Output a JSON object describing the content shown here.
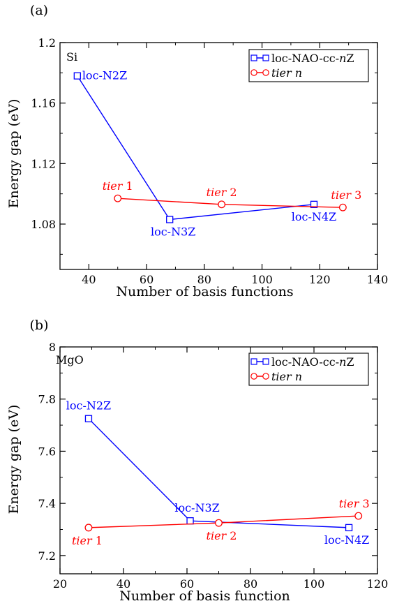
{
  "chart_data": [
    {
      "type": "line",
      "panel_label": "(a)",
      "material_label": "Si",
      "xlabel": "Number of basis functions",
      "ylabel": "Energy gap (eV)",
      "xlim": [
        30,
        140
      ],
      "ylim": [
        1.05,
        1.2
      ],
      "xticks": [
        40,
        60,
        80,
        100,
        120,
        140
      ],
      "xtick_labels": [
        "40",
        "60",
        "80",
        "100",
        "120",
        "140"
      ],
      "yticks": [
        1.08,
        1.12,
        1.16,
        1.2
      ],
      "ytick_labels": [
        "1.08",
        "1.12",
        "1.16",
        "1.2"
      ],
      "legend": {
        "placement": "top-right",
        "entries": [
          {
            "prefix": "loc-NAO-cc-",
            "italic": "n",
            "suffix": "Z",
            "color": "#0000ff",
            "marker": "square"
          },
          {
            "prefix": "",
            "italic": "tier n",
            "suffix": "",
            "color": "#ff0000",
            "marker": "circle"
          }
        ]
      },
      "series": [
        {
          "color": "#0000ff",
          "marker": "square",
          "x": [
            36,
            68,
            118
          ],
          "y": [
            1.178,
            1.083,
            1.093
          ],
          "point_labels": [
            "loc-N2Z",
            "loc-N3Z",
            "loc-N4Z"
          ]
        },
        {
          "color": "#ff0000",
          "marker": "circle",
          "x": [
            50,
            86,
            128
          ],
          "y": [
            1.097,
            1.093,
            1.091
          ],
          "point_labels_italic": [
            "tier",
            "tier",
            "tier"
          ],
          "point_labels_num": [
            "1",
            "2",
            "3"
          ]
        }
      ]
    },
    {
      "type": "line",
      "panel_label": "(b)",
      "material_label": "MgO",
      "xlabel": "Number of basis function",
      "ylabel": "Energy gap (eV)",
      "xlim": [
        20,
        120
      ],
      "ylim": [
        7.13,
        8.0
      ],
      "xticks": [
        20,
        40,
        60,
        80,
        100,
        120
      ],
      "xtick_labels": [
        "20",
        "40",
        "60",
        "80",
        "100",
        "120"
      ],
      "yticks": [
        7.2,
        7.4,
        7.6,
        7.8,
        8.0
      ],
      "ytick_labels": [
        "7.2",
        "7.4",
        "7.6",
        "7.8",
        "8"
      ],
      "legend": {
        "placement": "top-right",
        "entries": [
          {
            "prefix": "loc-NAO-cc-",
            "italic": "n",
            "suffix": "Z",
            "color": "#0000ff",
            "marker": "square"
          },
          {
            "prefix": "",
            "italic": "tier n",
            "suffix": "",
            "color": "#ff0000",
            "marker": "circle"
          }
        ]
      },
      "series": [
        {
          "color": "#0000ff",
          "marker": "square",
          "x": [
            29,
            61,
            111
          ],
          "y": [
            7.725,
            7.333,
            7.307
          ],
          "point_labels": [
            "loc-N2Z",
            "loc-N3Z",
            "loc-N4Z"
          ]
        },
        {
          "color": "#ff0000",
          "marker": "circle",
          "x": [
            29,
            70,
            114
          ],
          "y": [
            7.307,
            7.325,
            7.352
          ],
          "point_labels_italic": [
            "tier",
            "tier",
            "tier"
          ],
          "point_labels_num": [
            "1",
            "2",
            "3"
          ]
        }
      ]
    }
  ]
}
